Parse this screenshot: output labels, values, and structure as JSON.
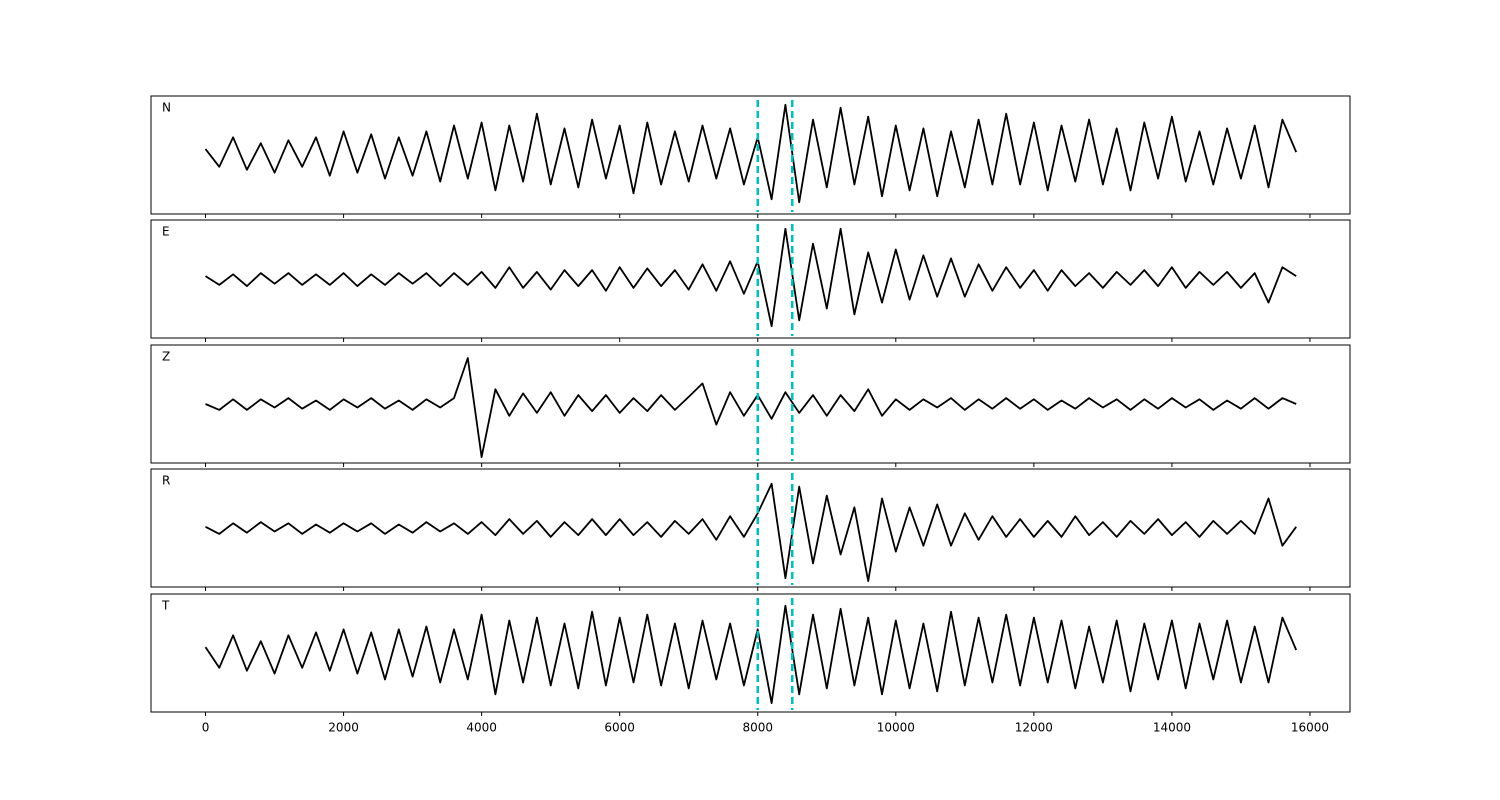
{
  "chart_data": {
    "type": "line",
    "x": [
      0,
      200,
      400,
      600,
      800,
      1000,
      1200,
      1400,
      1600,
      1800,
      2000,
      2200,
      2400,
      2600,
      2800,
      3000,
      3200,
      3400,
      3600,
      3800,
      4000,
      4200,
      4400,
      4600,
      4800,
      5000,
      5200,
      5400,
      5600,
      5800,
      6000,
      6200,
      6400,
      6600,
      6800,
      7000,
      7200,
      7400,
      7600,
      7800,
      8000,
      8200,
      8400,
      8600,
      8800,
      9000,
      9200,
      9400,
      9600,
      9800,
      10000,
      10200,
      10400,
      10600,
      10800,
      11000,
      11200,
      11400,
      11600,
      11800,
      12000,
      12200,
      12400,
      12600,
      12800,
      13000,
      13200,
      13400,
      13600,
      13800,
      14000,
      14200,
      14400,
      14600,
      14800,
      15000,
      15200,
      15400,
      15600,
      15800
    ],
    "xlim": [
      -790,
      16580
    ],
    "xticks": [
      0,
      2000,
      4000,
      6000,
      8000,
      10000,
      12000,
      14000,
      16000
    ],
    "ylim": [
      -1,
      1
    ],
    "vlines": [
      8000,
      8500
    ],
    "vline_color": "#00bfbf",
    "series": [
      {
        "name": "N",
        "color": "#000000",
        "values": [
          0.1,
          -0.2,
          0.3,
          -0.25,
          0.2,
          -0.3,
          0.25,
          -0.2,
          0.3,
          -0.35,
          0.4,
          -0.3,
          0.35,
          -0.4,
          0.3,
          -0.35,
          0.4,
          -0.45,
          0.5,
          -0.4,
          0.55,
          -0.6,
          0.5,
          -0.45,
          0.7,
          -0.5,
          0.45,
          -0.55,
          0.6,
          -0.4,
          0.5,
          -0.65,
          0.55,
          -0.5,
          0.4,
          -0.45,
          0.5,
          -0.4,
          0.45,
          -0.5,
          0.3,
          -0.75,
          0.85,
          -0.8,
          0.6,
          -0.55,
          0.8,
          -0.5,
          0.65,
          -0.7,
          0.5,
          -0.6,
          0.45,
          -0.7,
          0.4,
          -0.55,
          0.6,
          -0.5,
          0.7,
          -0.5,
          0.55,
          -0.6,
          0.5,
          -0.45,
          0.6,
          -0.5,
          0.45,
          -0.6,
          0.55,
          -0.4,
          0.65,
          -0.45,
          0.4,
          -0.5,
          0.45,
          -0.4,
          0.5,
          -0.55,
          0.6,
          0.05
        ]
      },
      {
        "name": "E",
        "color": "#000000",
        "values": [
          0.05,
          -0.1,
          0.08,
          -0.12,
          0.1,
          -0.08,
          0.1,
          -0.1,
          0.08,
          -0.1,
          0.1,
          -0.12,
          0.08,
          -0.1,
          0.1,
          -0.08,
          0.1,
          -0.12,
          0.1,
          -0.1,
          0.12,
          -0.15,
          0.2,
          -0.15,
          0.12,
          -0.18,
          0.15,
          -0.12,
          0.15,
          -0.2,
          0.2,
          -0.15,
          0.18,
          -0.12,
          0.15,
          -0.18,
          0.25,
          -0.2,
          0.3,
          -0.25,
          0.3,
          -0.8,
          0.85,
          -0.7,
          0.6,
          -0.5,
          0.85,
          -0.6,
          0.45,
          -0.4,
          0.5,
          -0.35,
          0.4,
          -0.3,
          0.35,
          -0.3,
          0.25,
          -0.2,
          0.2,
          -0.15,
          0.15,
          -0.2,
          0.15,
          -0.12,
          0.1,
          -0.15,
          0.12,
          -0.1,
          0.15,
          -0.12,
          0.2,
          -0.15,
          0.12,
          -0.1,
          0.12,
          -0.15,
          0.1,
          -0.4,
          0.2,
          0.05
        ]
      },
      {
        "name": "Z",
        "color": "#000000",
        "values": [
          0,
          -0.1,
          0.08,
          -0.1,
          0.08,
          -0.06,
          0.1,
          -0.08,
          0.06,
          -0.1,
          0.08,
          -0.06,
          0.1,
          -0.08,
          0.06,
          -0.1,
          0.08,
          -0.06,
          0.1,
          0.78,
          -0.9,
          0.25,
          -0.2,
          0.18,
          -0.15,
          0.2,
          -0.2,
          0.15,
          -0.12,
          0.15,
          -0.15,
          0.1,
          -0.12,
          0.15,
          -0.1,
          0.12,
          0.35,
          -0.35,
          0.2,
          -0.2,
          0.15,
          -0.25,
          0.2,
          -0.15,
          0.15,
          -0.2,
          0.15,
          -0.12,
          0.25,
          -0.2,
          0.08,
          -0.1,
          0.08,
          -0.06,
          0.1,
          -0.1,
          0.08,
          -0.08,
          0.1,
          -0.08,
          0.08,
          -0.1,
          0.06,
          -0.08,
          0.1,
          -0.06,
          0.08,
          -0.1,
          0.08,
          -0.08,
          0.1,
          -0.06,
          0.08,
          -0.1,
          0.06,
          -0.08,
          0.1,
          -0.08,
          0.1,
          0
        ]
      },
      {
        "name": "R",
        "color": "#000000",
        "values": [
          0.02,
          -0.1,
          0.08,
          -0.08,
          0.1,
          -0.06,
          0.08,
          -0.1,
          0.06,
          -0.08,
          0.08,
          -0.06,
          0.08,
          -0.1,
          0.06,
          -0.08,
          0.1,
          -0.06,
          0.08,
          -0.1,
          0.1,
          -0.12,
          0.15,
          -0.1,
          0.12,
          -0.15,
          0.1,
          -0.12,
          0.15,
          -0.12,
          0.15,
          -0.12,
          0.1,
          -0.15,
          0.12,
          -0.1,
          0.15,
          -0.2,
          0.2,
          -0.15,
          0.25,
          0.75,
          -0.85,
          0.7,
          -0.6,
          0.55,
          -0.45,
          0.35,
          -0.9,
          0.5,
          -0.4,
          0.35,
          -0.3,
          0.4,
          -0.3,
          0.25,
          -0.2,
          0.2,
          -0.15,
          0.15,
          -0.15,
          0.12,
          -0.15,
          0.2,
          -0.12,
          0.1,
          -0.15,
          0.12,
          -0.1,
          0.15,
          -0.12,
          0.1,
          -0.15,
          0.12,
          -0.1,
          0.12,
          -0.1,
          0.5,
          -0.3,
          0.02
        ]
      },
      {
        "name": "T",
        "color": "#000000",
        "values": [
          0.1,
          -0.25,
          0.3,
          -0.3,
          0.2,
          -0.35,
          0.3,
          -0.25,
          0.35,
          -0.3,
          0.4,
          -0.35,
          0.35,
          -0.45,
          0.4,
          -0.4,
          0.45,
          -0.5,
          0.4,
          -0.45,
          0.65,
          -0.7,
          0.55,
          -0.5,
          0.6,
          -0.55,
          0.5,
          -0.6,
          0.7,
          -0.55,
          0.6,
          -0.5,
          0.65,
          -0.55,
          0.5,
          -0.6,
          0.55,
          -0.45,
          0.5,
          -0.55,
          0.4,
          -0.85,
          0.8,
          -0.7,
          0.65,
          -0.6,
          0.75,
          -0.55,
          0.6,
          -0.7,
          0.55,
          -0.6,
          0.5,
          -0.65,
          0.7,
          -0.55,
          0.6,
          -0.5,
          0.65,
          -0.55,
          0.6,
          -0.5,
          0.55,
          -0.6,
          0.45,
          -0.5,
          0.55,
          -0.65,
          0.5,
          -0.45,
          0.55,
          -0.6,
          0.5,
          -0.45,
          0.55,
          -0.5,
          0.45,
          -0.5,
          0.6,
          0.05
        ]
      }
    ]
  }
}
